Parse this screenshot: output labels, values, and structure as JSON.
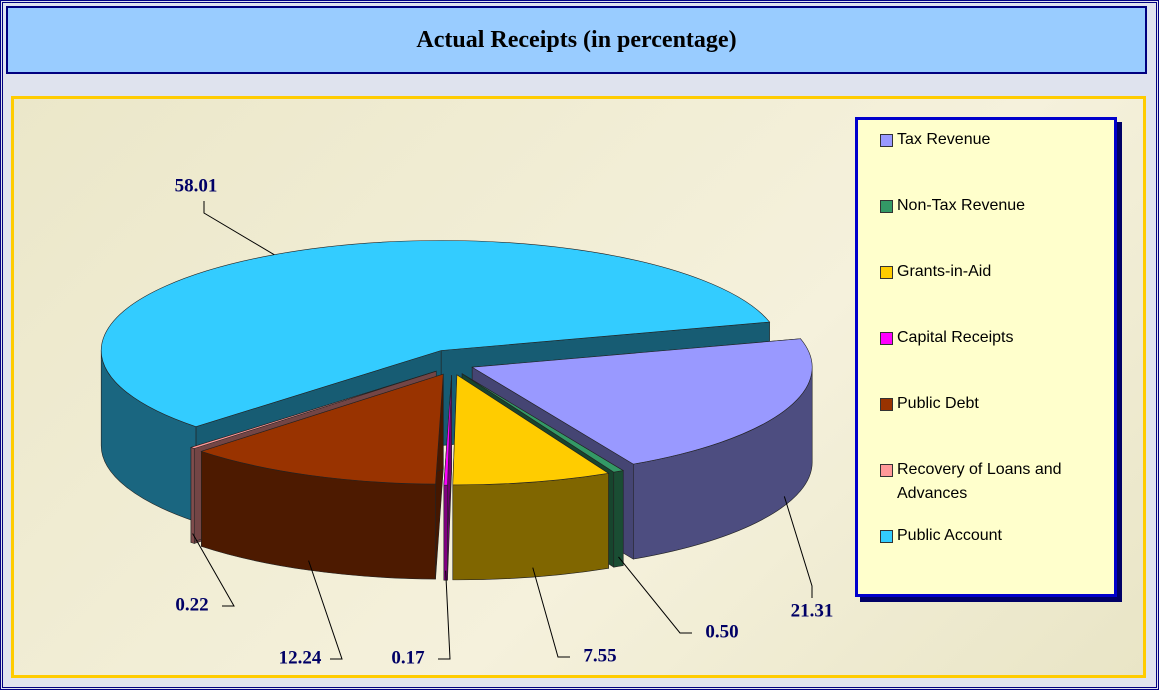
{
  "chart_data": {
    "type": "pie3d",
    "title": "Actual Receipts (in percentage)",
    "categories": [
      "Tax Revenue",
      "Non-Tax Revenue",
      "Grants-in-Aid",
      "Capital Receipts",
      "Public Debt",
      "Recovery of Loans and Advances",
      "Public Account"
    ],
    "values": [
      21.31,
      0.5,
      7.55,
      0.17,
      12.24,
      0.22,
      58.01
    ],
    "value_labels": [
      "21.31",
      "0.50",
      "7.55",
      "0.17",
      "12.24",
      "0.22",
      "58.01"
    ],
    "colors": [
      "#9999ff",
      "#339966",
      "#ffcc00",
      "#ff00ff",
      "#993300",
      "#ff9999",
      "#33ccff"
    ],
    "legend": "right"
  }
}
